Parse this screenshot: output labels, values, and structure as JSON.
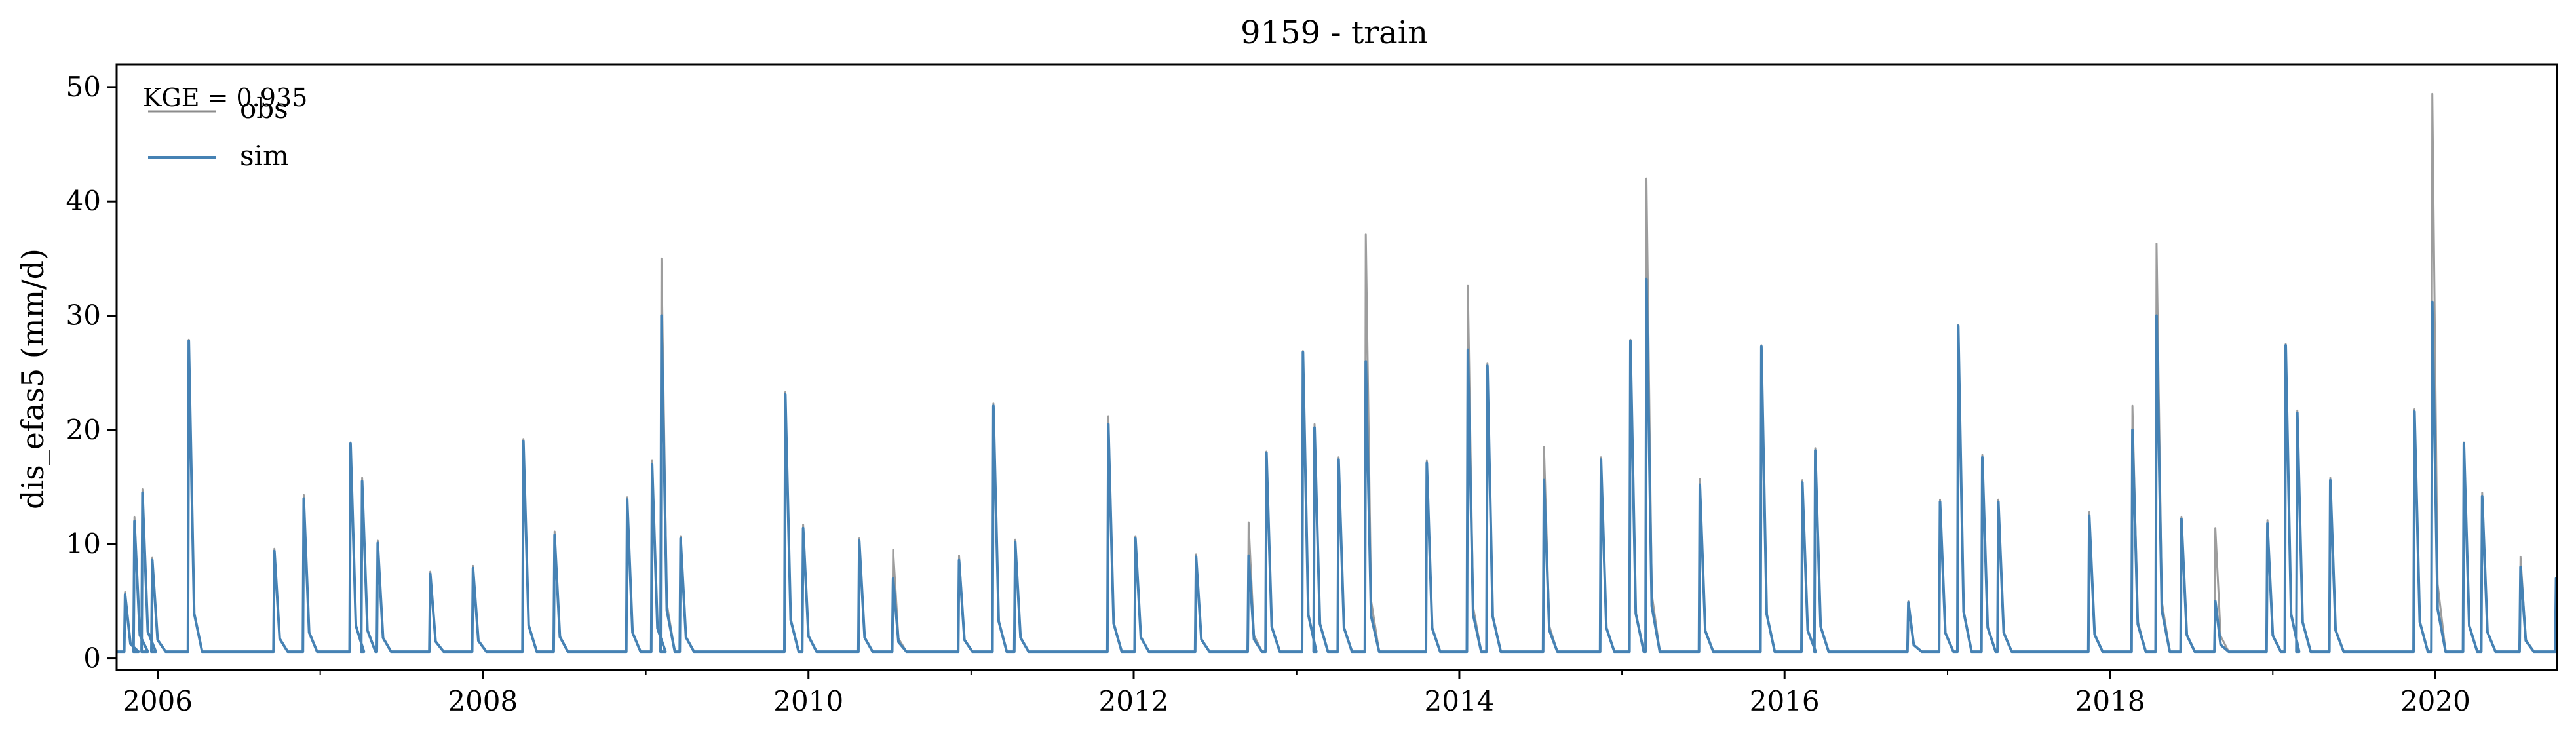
{
  "chart_data": {
    "type": "line",
    "title": "9159 - train",
    "xlabel": "",
    "ylabel": "dis_efas5 (mm/d)",
    "x_range": [
      "2005-10-01",
      "2020-09-30"
    ],
    "ylim": [
      -1,
      52
    ],
    "y_ticks": [
      0,
      10,
      20,
      30,
      40,
      50
    ],
    "x_ticks": [
      {
        "label": "2006",
        "date": "2006-01-01"
      },
      {
        "label": "2008",
        "date": "2008-01-01"
      },
      {
        "label": "2010",
        "date": "2010-01-01"
      },
      {
        "label": "2012",
        "date": "2012-01-01"
      },
      {
        "label": "2014",
        "date": "2014-01-01"
      },
      {
        "label": "2016",
        "date": "2016-01-01"
      },
      {
        "label": "2018",
        "date": "2018-01-01"
      },
      {
        "label": "2020",
        "date": "2020-01-01"
      }
    ],
    "grid": false,
    "legend_position": "top-left",
    "annotation": "KGE = 0.935",
    "baseflow": 0.6,
    "series": [
      {
        "name": "obs",
        "color": "#8c8c8c",
        "peaks": [
          [
            "2005-10-20",
            5.8
          ],
          [
            "2005-11-10",
            12.4
          ],
          [
            "2005-11-28",
            14.8
          ],
          [
            "2005-12-20",
            8.8
          ],
          [
            "2006-03-12",
            27.9
          ],
          [
            "2006-09-20",
            9.6
          ],
          [
            "2006-11-25",
            14.3
          ],
          [
            "2007-03-10",
            18.9
          ],
          [
            "2007-04-05",
            15.8
          ],
          [
            "2007-05-10",
            10.3
          ],
          [
            "2007-09-05",
            7.6
          ],
          [
            "2007-12-10",
            8.1
          ],
          [
            "2008-04-01",
            19.2
          ],
          [
            "2008-06-10",
            11.1
          ],
          [
            "2008-11-20",
            14.1
          ],
          [
            "2009-01-15",
            17.3
          ],
          [
            "2009-02-05",
            35.0
          ],
          [
            "2009-03-20",
            10.7
          ],
          [
            "2009-11-10",
            23.3
          ],
          [
            "2009-12-20",
            11.7
          ],
          [
            "2010-04-25",
            10.5
          ],
          [
            "2010-07-10",
            9.5
          ],
          [
            "2010-12-05",
            9.0
          ],
          [
            "2011-02-20",
            22.3
          ],
          [
            "2011-04-10",
            10.4
          ],
          [
            "2011-11-05",
            21.2
          ],
          [
            "2012-01-05",
            10.7
          ],
          [
            "2012-05-20",
            9.1
          ],
          [
            "2012-09-15",
            11.9
          ],
          [
            "2012-10-25",
            18.1
          ],
          [
            "2013-01-15",
            26.9
          ],
          [
            "2013-02-10",
            20.5
          ],
          [
            "2013-04-05",
            17.6
          ],
          [
            "2013-06-05",
            37.1
          ],
          [
            "2013-10-20",
            17.3
          ],
          [
            "2014-01-20",
            32.6
          ],
          [
            "2014-03-05",
            25.8
          ],
          [
            "2014-07-10",
            18.5
          ],
          [
            "2014-11-15",
            17.6
          ],
          [
            "2015-01-20",
            27.9
          ],
          [
            "2015-02-25",
            42.0
          ],
          [
            "2015-06-25",
            15.7
          ],
          [
            "2015-11-10",
            27.4
          ],
          [
            "2016-02-10",
            15.6
          ],
          [
            "2016-03-10",
            18.4
          ],
          [
            "2016-10-05",
            5.0
          ],
          [
            "2016-12-15",
            13.9
          ],
          [
            "2017-01-25",
            29.2
          ],
          [
            "2017-03-20",
            17.8
          ],
          [
            "2017-04-25",
            13.9
          ],
          [
            "2017-11-15",
            12.8
          ],
          [
            "2018-02-20",
            22.1
          ],
          [
            "2018-04-15",
            36.3
          ],
          [
            "2018-06-10",
            12.4
          ],
          [
            "2018-08-25",
            11.4
          ],
          [
            "2018-12-20",
            12.1
          ],
          [
            "2019-01-30",
            27.5
          ],
          [
            "2019-02-25",
            21.7
          ],
          [
            "2019-05-10",
            15.8
          ],
          [
            "2019-11-15",
            21.8
          ],
          [
            "2019-12-25",
            49.4
          ],
          [
            "2020-03-05",
            18.9
          ],
          [
            "2020-04-15",
            14.5
          ],
          [
            "2020-07-10",
            8.9
          ],
          [
            "2020-09-28",
            7.0
          ]
        ]
      },
      {
        "name": "sim",
        "color": "#4682b4",
        "peaks": [
          [
            "2005-10-20",
            5.6
          ],
          [
            "2005-11-10",
            12.0
          ],
          [
            "2005-11-28",
            14.5
          ],
          [
            "2005-12-20",
            8.6
          ],
          [
            "2006-03-12",
            27.8
          ],
          [
            "2006-09-20",
            9.4
          ],
          [
            "2006-11-25",
            14.0
          ],
          [
            "2007-03-10",
            18.8
          ],
          [
            "2007-04-05",
            15.5
          ],
          [
            "2007-05-10",
            10.1
          ],
          [
            "2007-09-05",
            7.4
          ],
          [
            "2007-12-10",
            7.9
          ],
          [
            "2008-04-01",
            19.0
          ],
          [
            "2008-06-10",
            10.8
          ],
          [
            "2008-11-20",
            13.9
          ],
          [
            "2009-01-15",
            17.0
          ],
          [
            "2009-02-05",
            30.0
          ],
          [
            "2009-03-20",
            10.5
          ],
          [
            "2009-11-10",
            23.1
          ],
          [
            "2009-12-20",
            11.4
          ],
          [
            "2010-04-25",
            10.3
          ],
          [
            "2010-07-10",
            7.0
          ],
          [
            "2010-12-05",
            8.6
          ],
          [
            "2011-02-20",
            22.1
          ],
          [
            "2011-04-10",
            10.2
          ],
          [
            "2011-11-05",
            20.5
          ],
          [
            "2012-01-05",
            10.5
          ],
          [
            "2012-05-20",
            8.9
          ],
          [
            "2012-09-15",
            9.0
          ],
          [
            "2012-10-25",
            18.0
          ],
          [
            "2013-01-15",
            26.8
          ],
          [
            "2013-02-10",
            20.2
          ],
          [
            "2013-04-05",
            17.4
          ],
          [
            "2013-06-05",
            26.0
          ],
          [
            "2013-10-20",
            17.1
          ],
          [
            "2014-01-20",
            27.0
          ],
          [
            "2014-03-05",
            25.6
          ],
          [
            "2014-07-10",
            15.6
          ],
          [
            "2014-11-15",
            17.4
          ],
          [
            "2015-01-20",
            27.8
          ],
          [
            "2015-02-25",
            33.2
          ],
          [
            "2015-06-25",
            15.2
          ],
          [
            "2015-11-10",
            27.3
          ],
          [
            "2016-02-10",
            15.4
          ],
          [
            "2016-03-10",
            18.2
          ],
          [
            "2016-10-05",
            4.9
          ],
          [
            "2016-12-15",
            13.7
          ],
          [
            "2017-01-25",
            29.1
          ],
          [
            "2017-03-20",
            17.6
          ],
          [
            "2017-04-25",
            13.7
          ],
          [
            "2017-11-15",
            12.5
          ],
          [
            "2018-02-20",
            20.0
          ],
          [
            "2018-04-15",
            30.0
          ],
          [
            "2018-06-10",
            12.2
          ],
          [
            "2018-08-25",
            5.0
          ],
          [
            "2018-12-20",
            11.8
          ],
          [
            "2019-01-30",
            27.4
          ],
          [
            "2019-02-25",
            21.5
          ],
          [
            "2019-05-10",
            15.6
          ],
          [
            "2019-11-15",
            21.6
          ],
          [
            "2019-12-25",
            31.2
          ],
          [
            "2020-03-05",
            18.8
          ],
          [
            "2020-04-15",
            14.2
          ],
          [
            "2020-07-10",
            8.0
          ],
          [
            "2020-09-28",
            7.0
          ]
        ]
      }
    ]
  }
}
